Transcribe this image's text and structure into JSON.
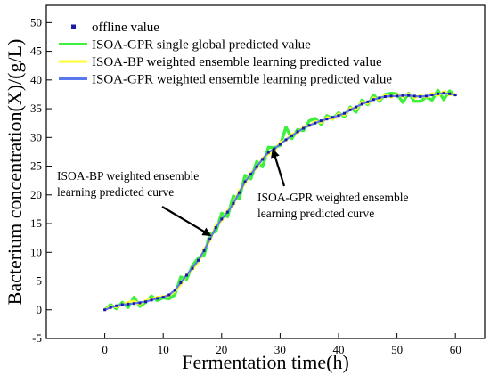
{
  "chart_data": {
    "type": "line",
    "xlabel": "Fermentation time(h)",
    "ylabel": "Bacterium concentration(X)/(g/L)",
    "xlim": [
      -10,
      65
    ],
    "ylim": [
      -5,
      53
    ],
    "xticks": [
      0,
      10,
      20,
      30,
      40,
      50,
      60
    ],
    "yticks": [
      -5,
      0,
      5,
      10,
      15,
      20,
      25,
      30,
      35,
      40,
      45,
      50
    ],
    "legend_position": "top-left",
    "x": [
      0,
      1,
      2,
      3,
      4,
      5,
      6,
      7,
      8,
      9,
      10,
      11,
      12,
      13,
      14,
      15,
      16,
      17,
      18,
      19,
      20,
      21,
      22,
      23,
      24,
      25,
      26,
      27,
      28,
      29,
      30,
      31,
      32,
      33,
      34,
      35,
      36,
      37,
      38,
      39,
      40,
      41,
      42,
      43,
      44,
      45,
      46,
      47,
      48,
      49,
      50,
      51,
      52,
      53,
      54,
      55,
      56,
      57,
      58,
      59,
      60
    ],
    "series": [
      {
        "name": "offline value",
        "style": "markers",
        "color": "#1a1aa6",
        "values": [
          0,
          0.4,
          0.7,
          0.9,
          1.0,
          1.1,
          1.2,
          1.4,
          1.7,
          2.0,
          2.2,
          2.6,
          3.4,
          4.7,
          6.0,
          7.2,
          8.6,
          10.3,
          12.3,
          14.3,
          15.8,
          17.0,
          18.5,
          20.4,
          22.3,
          23.6,
          24.9,
          26.2,
          27.4,
          28.0,
          28.8,
          29.6,
          30.3,
          31.0,
          31.6,
          32.1,
          32.5,
          32.9,
          33.2,
          33.5,
          33.8,
          34.2,
          34.8,
          35.3,
          35.8,
          36.2,
          36.6,
          36.9,
          37.1,
          37.2,
          37.2,
          37.3,
          37.3,
          37.2,
          37.1,
          37.2,
          37.4,
          37.6,
          37.7,
          37.6,
          37.4
        ]
      },
      {
        "name": "ISOA-GPR single global predicted value",
        "style": "line",
        "color": "#3cf03c",
        "values": [
          0,
          0.9,
          0.2,
          1.3,
          0.4,
          2.2,
          0.6,
          1.3,
          2.4,
          1.6,
          2.1,
          1.9,
          2.6,
          5.7,
          5.3,
          7.7,
          9.0,
          9.5,
          13.2,
          13.6,
          16.8,
          16.2,
          19.8,
          19.3,
          23.4,
          22.8,
          25.8,
          24.9,
          28.3,
          28.2,
          28.6,
          31.8,
          29.8,
          31.4,
          31.2,
          32.9,
          33.3,
          32.3,
          33.8,
          33.2,
          34.3,
          33.6,
          35.3,
          34.4,
          36.5,
          35.7,
          37.4,
          36.3,
          37.5,
          37.7,
          37.6,
          36.1,
          37.7,
          36.3,
          36.3,
          37.0,
          36.5,
          38.2,
          36.6,
          38.1,
          37.3
        ]
      },
      {
        "name": "ISOA-BP weighted ensemble learning predicted value",
        "style": "line",
        "color": "#ffff33",
        "values": [
          0,
          0.6,
          0.5,
          0.9,
          1.3,
          1.5,
          1.0,
          1.6,
          1.9,
          2.2,
          2.3,
          2.5,
          3.2,
          4.4,
          6.1,
          7.0,
          8.3,
          10.6,
          12.0,
          14.7,
          15.5,
          17.3,
          18.2,
          20.8,
          21.9,
          23.9,
          24.6,
          26.4,
          27.1,
          27.6,
          29.2,
          29.5,
          30.6,
          30.8,
          31.9,
          32.0,
          32.8,
          32.6,
          33.5,
          33.2,
          34.1,
          33.9,
          35.1,
          34.9,
          36.2,
          35.9,
          36.9,
          36.6,
          37.4,
          37.0,
          37.5,
          37.1,
          37.6,
          36.9,
          37.3,
          37.0,
          37.7,
          37.3,
          38.0,
          37.4,
          37.6
        ]
      },
      {
        "name": "ISOA-GPR weighted ensemble learning predicted value",
        "style": "line",
        "color": "#5a78ee",
        "values": [
          0,
          0.4,
          0.7,
          0.9,
          1.0,
          1.1,
          1.3,
          1.4,
          1.7,
          2.0,
          2.2,
          2.6,
          3.4,
          4.7,
          6.0,
          7.3,
          8.6,
          10.3,
          12.3,
          14.3,
          15.8,
          17.0,
          18.5,
          20.4,
          22.3,
          23.6,
          24.9,
          26.2,
          27.4,
          28.0,
          28.8,
          29.6,
          30.3,
          31.0,
          31.6,
          32.1,
          32.5,
          32.9,
          33.2,
          33.5,
          33.8,
          34.2,
          34.8,
          35.3,
          35.8,
          36.2,
          36.6,
          36.9,
          37.1,
          37.2,
          37.2,
          37.3,
          37.3,
          37.2,
          37.1,
          37.2,
          37.4,
          37.6,
          37.7,
          37.6,
          37.4
        ]
      }
    ],
    "annotations": [
      {
        "id": "bp",
        "lines": [
          "ISOA-BP weighted ensemble",
          "learning predicted curve"
        ],
        "target": [
          18,
          13.0
        ]
      },
      {
        "id": "gpr",
        "lines": [
          "ISOA-GPR weighted ensemble",
          "learning predicted curve"
        ],
        "target": [
          28.8,
          27.8
        ]
      }
    ]
  }
}
